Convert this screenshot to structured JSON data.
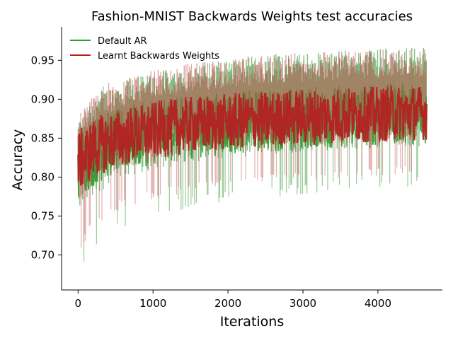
{
  "chart_data": {
    "type": "line",
    "title": "Fashion-MNIST Backwards Weights test accuracies",
    "xlabel": "Iterations",
    "ylabel": "Accuracy",
    "xlim": [
      -220,
      4860
    ],
    "ylim": [
      0.655,
      0.993
    ],
    "x_ticks": [
      "0",
      "1000",
      "2000",
      "3000",
      "4000"
    ],
    "x_tick_values": [
      0,
      1000,
      2000,
      3000,
      4000
    ],
    "y_ticks": [
      "0.70",
      "0.75",
      "0.80",
      "0.85",
      "0.90",
      "0.95"
    ],
    "y_tick_values": [
      0.7,
      0.75,
      0.8,
      0.85,
      0.9,
      0.95
    ],
    "legend_position": "top-left",
    "grid": false,
    "series": [
      {
        "name": "Default AR",
        "color": "#2ca02c",
        "band_color": "#1f8a1f",
        "x": [
          0,
          250,
          500,
          750,
          1000,
          1250,
          1500,
          1750,
          2000,
          2250,
          2500,
          2750,
          3000,
          3250,
          3500,
          3750,
          4000,
          4250,
          4500,
          4650
        ],
        "mean": [
          0.815,
          0.835,
          0.845,
          0.852,
          0.857,
          0.861,
          0.864,
          0.867,
          0.869,
          0.871,
          0.873,
          0.874,
          0.876,
          0.877,
          0.878,
          0.879,
          0.88,
          0.881,
          0.882,
          0.882
        ],
        "lower": [
          0.67,
          0.71,
          0.73,
          0.74,
          0.75,
          0.755,
          0.76,
          0.765,
          0.77,
          0.772,
          0.774,
          0.776,
          0.778,
          0.78,
          0.782,
          0.783,
          0.785,
          0.786,
          0.787,
          0.788
        ],
        "upper": [
          0.87,
          0.91,
          0.92,
          0.93,
          0.935,
          0.94,
          0.945,
          0.95,
          0.952,
          0.955,
          0.958,
          0.96,
          0.962,
          0.963,
          0.964,
          0.965,
          0.966,
          0.967,
          0.968,
          0.968
        ]
      },
      {
        "name": "Learnt Backwards Weights",
        "color": "#b22222",
        "band_color": "#c0504d",
        "x": [
          0,
          250,
          500,
          750,
          1000,
          1250,
          1500,
          1750,
          2000,
          2250,
          2500,
          2750,
          3000,
          3250,
          3500,
          3750,
          4000,
          4250,
          4500,
          4650
        ],
        "mean": [
          0.82,
          0.84,
          0.848,
          0.855,
          0.86,
          0.864,
          0.867,
          0.869,
          0.871,
          0.873,
          0.874,
          0.876,
          0.877,
          0.878,
          0.879,
          0.88,
          0.881,
          0.882,
          0.883,
          0.883
        ],
        "lower": [
          0.7,
          0.74,
          0.755,
          0.765,
          0.77,
          0.775,
          0.78,
          0.783,
          0.786,
          0.789,
          0.791,
          0.793,
          0.795,
          0.797,
          0.798,
          0.8,
          0.801,
          0.802,
          0.803,
          0.804
        ],
        "upper": [
          0.88,
          0.915,
          0.925,
          0.932,
          0.937,
          0.942,
          0.946,
          0.949,
          0.951,
          0.954,
          0.956,
          0.958,
          0.96,
          0.961,
          0.962,
          0.963,
          0.964,
          0.965,
          0.966,
          0.966
        ]
      }
    ]
  }
}
